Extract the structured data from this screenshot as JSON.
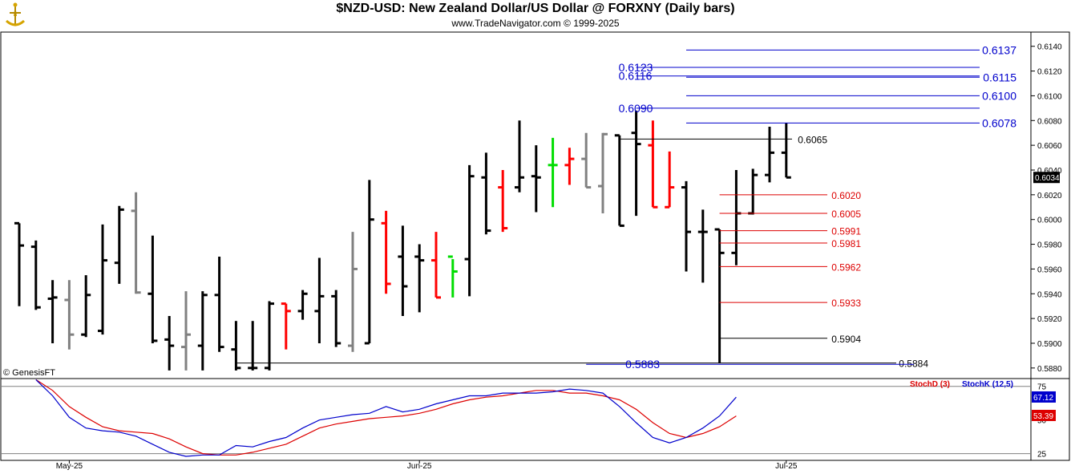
{
  "header": {
    "title": "$NZD-USD:  New Zealand Dollar/US Dollar @ FORXNY  (Daily bars)",
    "subtitle": "www.TradeNavigator.com © 1999-2025"
  },
  "watermark": "© GenesisFT",
  "colors": {
    "up": "#000000",
    "down": "#ff0000",
    "neutral": "#808080",
    "signal": "#00dd00",
    "fib_blue": "#0000cc",
    "fib_red": "#dd0000",
    "stochD": "#dd0000",
    "stochK": "#0000cc"
  },
  "chart_data": [
    {
      "type": "ohlc",
      "title": "$NZD-USD:  New Zealand Dollar/US Dollar @ FORXNY  (Daily bars)",
      "x_labels": [
        {
          "label": "May-25",
          "bar": 3
        },
        {
          "label": "Jun-25",
          "bar": 24
        },
        {
          "label": "Jul-25",
          "bar": 46
        }
      ],
      "ylim": [
        0.5876,
        0.6145
      ],
      "yticks": [
        "0.6140",
        "0.6120",
        "0.6100",
        "0.6080",
        "0.6060",
        "0.6040",
        "0.6020",
        "0.6000",
        "0.5980",
        "0.5960",
        "0.5940",
        "0.5920",
        "0.5900",
        "0.5880"
      ],
      "last_price": "0.6034",
      "bars": [
        {
          "o": 0.5997,
          "h": 0.5997,
          "l": 0.593,
          "c": 0.5979,
          "col": "up"
        },
        {
          "o": 0.5978,
          "h": 0.5983,
          "l": 0.5927,
          "c": 0.5929,
          "col": "up"
        },
        {
          "o": 0.5936,
          "h": 0.5951,
          "l": 0.59,
          "c": 0.5937,
          "col": "up"
        },
        {
          "o": 0.5935,
          "h": 0.5951,
          "l": 0.5895,
          "c": 0.5907,
          "col": "neutral"
        },
        {
          "o": 0.5907,
          "h": 0.5955,
          "l": 0.5905,
          "c": 0.5939,
          "col": "up"
        },
        {
          "o": 0.591,
          "h": 0.5996,
          "l": 0.5907,
          "c": 0.5967,
          "col": "up"
        },
        {
          "o": 0.5965,
          "h": 0.6011,
          "l": 0.5948,
          "c": 0.6008,
          "col": "up"
        },
        {
          "o": 0.6007,
          "h": 0.6022,
          "l": 0.594,
          "c": 0.5941,
          "col": "neutral"
        },
        {
          "o": 0.594,
          "h": 0.5987,
          "l": 0.59,
          "c": 0.5902,
          "col": "up"
        },
        {
          "o": 0.5903,
          "h": 0.5922,
          "l": 0.5878,
          "c": 0.5898,
          "col": "up"
        },
        {
          "o": 0.5897,
          "h": 0.5942,
          "l": 0.5878,
          "c": 0.5907,
          "col": "neutral"
        },
        {
          "o": 0.5898,
          "h": 0.5942,
          "l": 0.5878,
          "c": 0.5939,
          "col": "up"
        },
        {
          "o": 0.5939,
          "h": 0.597,
          "l": 0.5893,
          "c": 0.5897,
          "col": "up"
        },
        {
          "o": 0.5895,
          "h": 0.5918,
          "l": 0.5878,
          "c": 0.588,
          "col": "up"
        },
        {
          "o": 0.588,
          "h": 0.5918,
          "l": 0.5878,
          "c": 0.588,
          "col": "up"
        },
        {
          "o": 0.588,
          "h": 0.5934,
          "l": 0.5878,
          "c": 0.5932,
          "col": "up"
        },
        {
          "o": 0.5932,
          "h": 0.5932,
          "l": 0.5895,
          "c": 0.5926,
          "col": "down"
        },
        {
          "o": 0.5926,
          "h": 0.5943,
          "l": 0.5919,
          "c": 0.594,
          "col": "up"
        },
        {
          "o": 0.5926,
          "h": 0.5969,
          "l": 0.59,
          "c": 0.5938,
          "col": "up"
        },
        {
          "o": 0.5938,
          "h": 0.5943,
          "l": 0.5897,
          "c": 0.59,
          "col": "up"
        },
        {
          "o": 0.5898,
          "h": 0.599,
          "l": 0.5893,
          "c": 0.596,
          "col": "neutral"
        },
        {
          "o": 0.59,
          "h": 0.6032,
          "l": 0.59,
          "c": 0.6,
          "col": "up"
        },
        {
          "o": 0.5997,
          "h": 0.6007,
          "l": 0.594,
          "c": 0.5948,
          "col": "down"
        },
        {
          "o": 0.597,
          "h": 0.5995,
          "l": 0.5922,
          "c": 0.5946,
          "col": "up"
        },
        {
          "o": 0.597,
          "h": 0.598,
          "l": 0.5925,
          "c": 0.5967,
          "col": "up"
        },
        {
          "o": 0.5967,
          "h": 0.599,
          "l": 0.5937,
          "c": 0.5937,
          "col": "down"
        },
        {
          "o": 0.597,
          "h": 0.5968,
          "l": 0.5937,
          "c": 0.5958,
          "col": "signal"
        },
        {
          "o": 0.5968,
          "h": 0.6044,
          "l": 0.5938,
          "c": 0.6035,
          "col": "up"
        },
        {
          "o": 0.6034,
          "h": 0.6054,
          "l": 0.5988,
          "c": 0.5991,
          "col": "up"
        },
        {
          "o": 0.6026,
          "h": 0.604,
          "l": 0.599,
          "c": 0.5993,
          "col": "down"
        },
        {
          "o": 0.6026,
          "h": 0.608,
          "l": 0.6022,
          "c": 0.6034,
          "col": "up"
        },
        {
          "o": 0.6035,
          "h": 0.606,
          "l": 0.6006,
          "c": 0.6034,
          "col": "up"
        },
        {
          "o": 0.6044,
          "h": 0.6066,
          "l": 0.601,
          "c": 0.6044,
          "col": "signal"
        },
        {
          "o": 0.6044,
          "h": 0.6058,
          "l": 0.6028,
          "c": 0.6049,
          "col": "down"
        },
        {
          "o": 0.6049,
          "h": 0.607,
          "l": 0.6026,
          "c": 0.6026,
          "col": "neutral"
        },
        {
          "o": 0.6027,
          "h": 0.607,
          "l": 0.6005,
          "c": 0.6069,
          "col": "neutral"
        },
        {
          "o": 0.6068,
          "h": 0.6068,
          "l": 0.5995,
          "c": 0.5995,
          "col": "up"
        },
        {
          "o": 0.607,
          "h": 0.6088,
          "l": 0.6003,
          "c": 0.6061,
          "col": "up"
        },
        {
          "o": 0.606,
          "h": 0.608,
          "l": 0.601,
          "c": 0.601,
          "col": "down"
        },
        {
          "o": 0.601,
          "h": 0.6055,
          "l": 0.601,
          "c": 0.6026,
          "col": "down"
        },
        {
          "o": 0.6026,
          "h": 0.6031,
          "l": 0.5958,
          "c": 0.599,
          "col": "up"
        },
        {
          "o": 0.599,
          "h": 0.6008,
          "l": 0.5949,
          "c": 0.599,
          "col": "up"
        },
        {
          "o": 0.5992,
          "h": 0.5992,
          "l": 0.5884,
          "c": 0.5973,
          "col": "up"
        },
        {
          "o": 0.5973,
          "h": 0.604,
          "l": 0.5963,
          "c": 0.6005,
          "col": "up"
        },
        {
          "o": 0.6005,
          "h": 0.6041,
          "l": 0.6004,
          "c": 0.6036,
          "col": "up"
        },
        {
          "o": 0.6036,
          "h": 0.6075,
          "l": 0.603,
          "c": 0.6054,
          "col": "up"
        },
        {
          "o": 0.6054,
          "h": 0.6078,
          "l": 0.6034,
          "c": 0.6034,
          "col": "up"
        }
      ],
      "levels": [
        {
          "value": 0.6137,
          "label": "0.6137",
          "color": "fib_blue",
          "label_side": "right",
          "from_bar": 40
        },
        {
          "value": 0.6123,
          "label": "0.6123",
          "color": "fib_blue",
          "label_side": "left",
          "from_bar": 37
        },
        {
          "value": 0.6116,
          "label": "0.6116",
          "color": "fib_blue",
          "label_side": "left",
          "from_bar": 37
        },
        {
          "value": 0.6115,
          "label": "0.6115",
          "color": "fib_blue",
          "label_side": "right",
          "from_bar": 40
        },
        {
          "value": 0.61,
          "label": "0.6100",
          "color": "fib_blue",
          "label_side": "right",
          "from_bar": 40
        },
        {
          "value": 0.609,
          "label": "0.6090",
          "color": "fib_blue",
          "label_side": "left",
          "from_bar": 37
        },
        {
          "value": 0.6078,
          "label": "0.6078",
          "color": "fib_blue",
          "label_side": "right",
          "from_bar": 40
        },
        {
          "value": 0.6065,
          "label": "0.6065",
          "color": "up",
          "label_side": "mid",
          "from_bar": 36
        },
        {
          "value": 0.602,
          "label": "0.6020",
          "color": "fib_red",
          "label_side": "mid",
          "from_bar": 42
        },
        {
          "value": 0.6005,
          "label": "0.6005",
          "color": "fib_red",
          "label_side": "mid",
          "from_bar": 42
        },
        {
          "value": 0.5991,
          "label": "0.5991",
          "color": "fib_red",
          "label_side": "mid",
          "from_bar": 42
        },
        {
          "value": 0.5981,
          "label": "0.5981",
          "color": "fib_red",
          "label_side": "mid",
          "from_bar": 42
        },
        {
          "value": 0.5962,
          "label": "0.5962",
          "color": "fib_red",
          "label_side": "mid",
          "from_bar": 42
        },
        {
          "value": 0.5933,
          "label": "0.5933",
          "color": "fib_red",
          "label_side": "mid",
          "from_bar": 42
        },
        {
          "value": 0.5904,
          "label": "0.5904",
          "color": "up",
          "label_side": "mid",
          "from_bar": 42
        },
        {
          "value": 0.5884,
          "label": "0.5884",
          "color": "up",
          "label_side": "mid",
          "from_bar": 13
        },
        {
          "value": 0.5883,
          "label": "0.5883",
          "color": "fib_blue",
          "label_side": "left",
          "from_bar": 34
        }
      ]
    },
    {
      "type": "line",
      "ylim": [
        20,
        82
      ],
      "yticks": [
        "75",
        "50",
        "25"
      ],
      "series": [
        {
          "name": "StochD (3)",
          "color": "stochD",
          "last": "53.39",
          "values": [
            80,
            72,
            60,
            52,
            45,
            42,
            41,
            40,
            36,
            30,
            25,
            24,
            24,
            26,
            29,
            32,
            38,
            44,
            47,
            49,
            51,
            52,
            53,
            55,
            58,
            62,
            65,
            67,
            68,
            70,
            72,
            72,
            70,
            70,
            68,
            65,
            58,
            48,
            40,
            37,
            40,
            45,
            53
          ]
        },
        {
          "name": "StochK (12,5)",
          "color": "stochK",
          "last": "67.12",
          "values": [
            80,
            68,
            52,
            44,
            42,
            41,
            38,
            32,
            26,
            23,
            24,
            24,
            31,
            30,
            34,
            37,
            44,
            50,
            52,
            54,
            55,
            60,
            56,
            58,
            62,
            65,
            68,
            68,
            70,
            70,
            70,
            71,
            73,
            72,
            70,
            60,
            48,
            37,
            33,
            37,
            44,
            53,
            67
          ]
        }
      ]
    }
  ]
}
